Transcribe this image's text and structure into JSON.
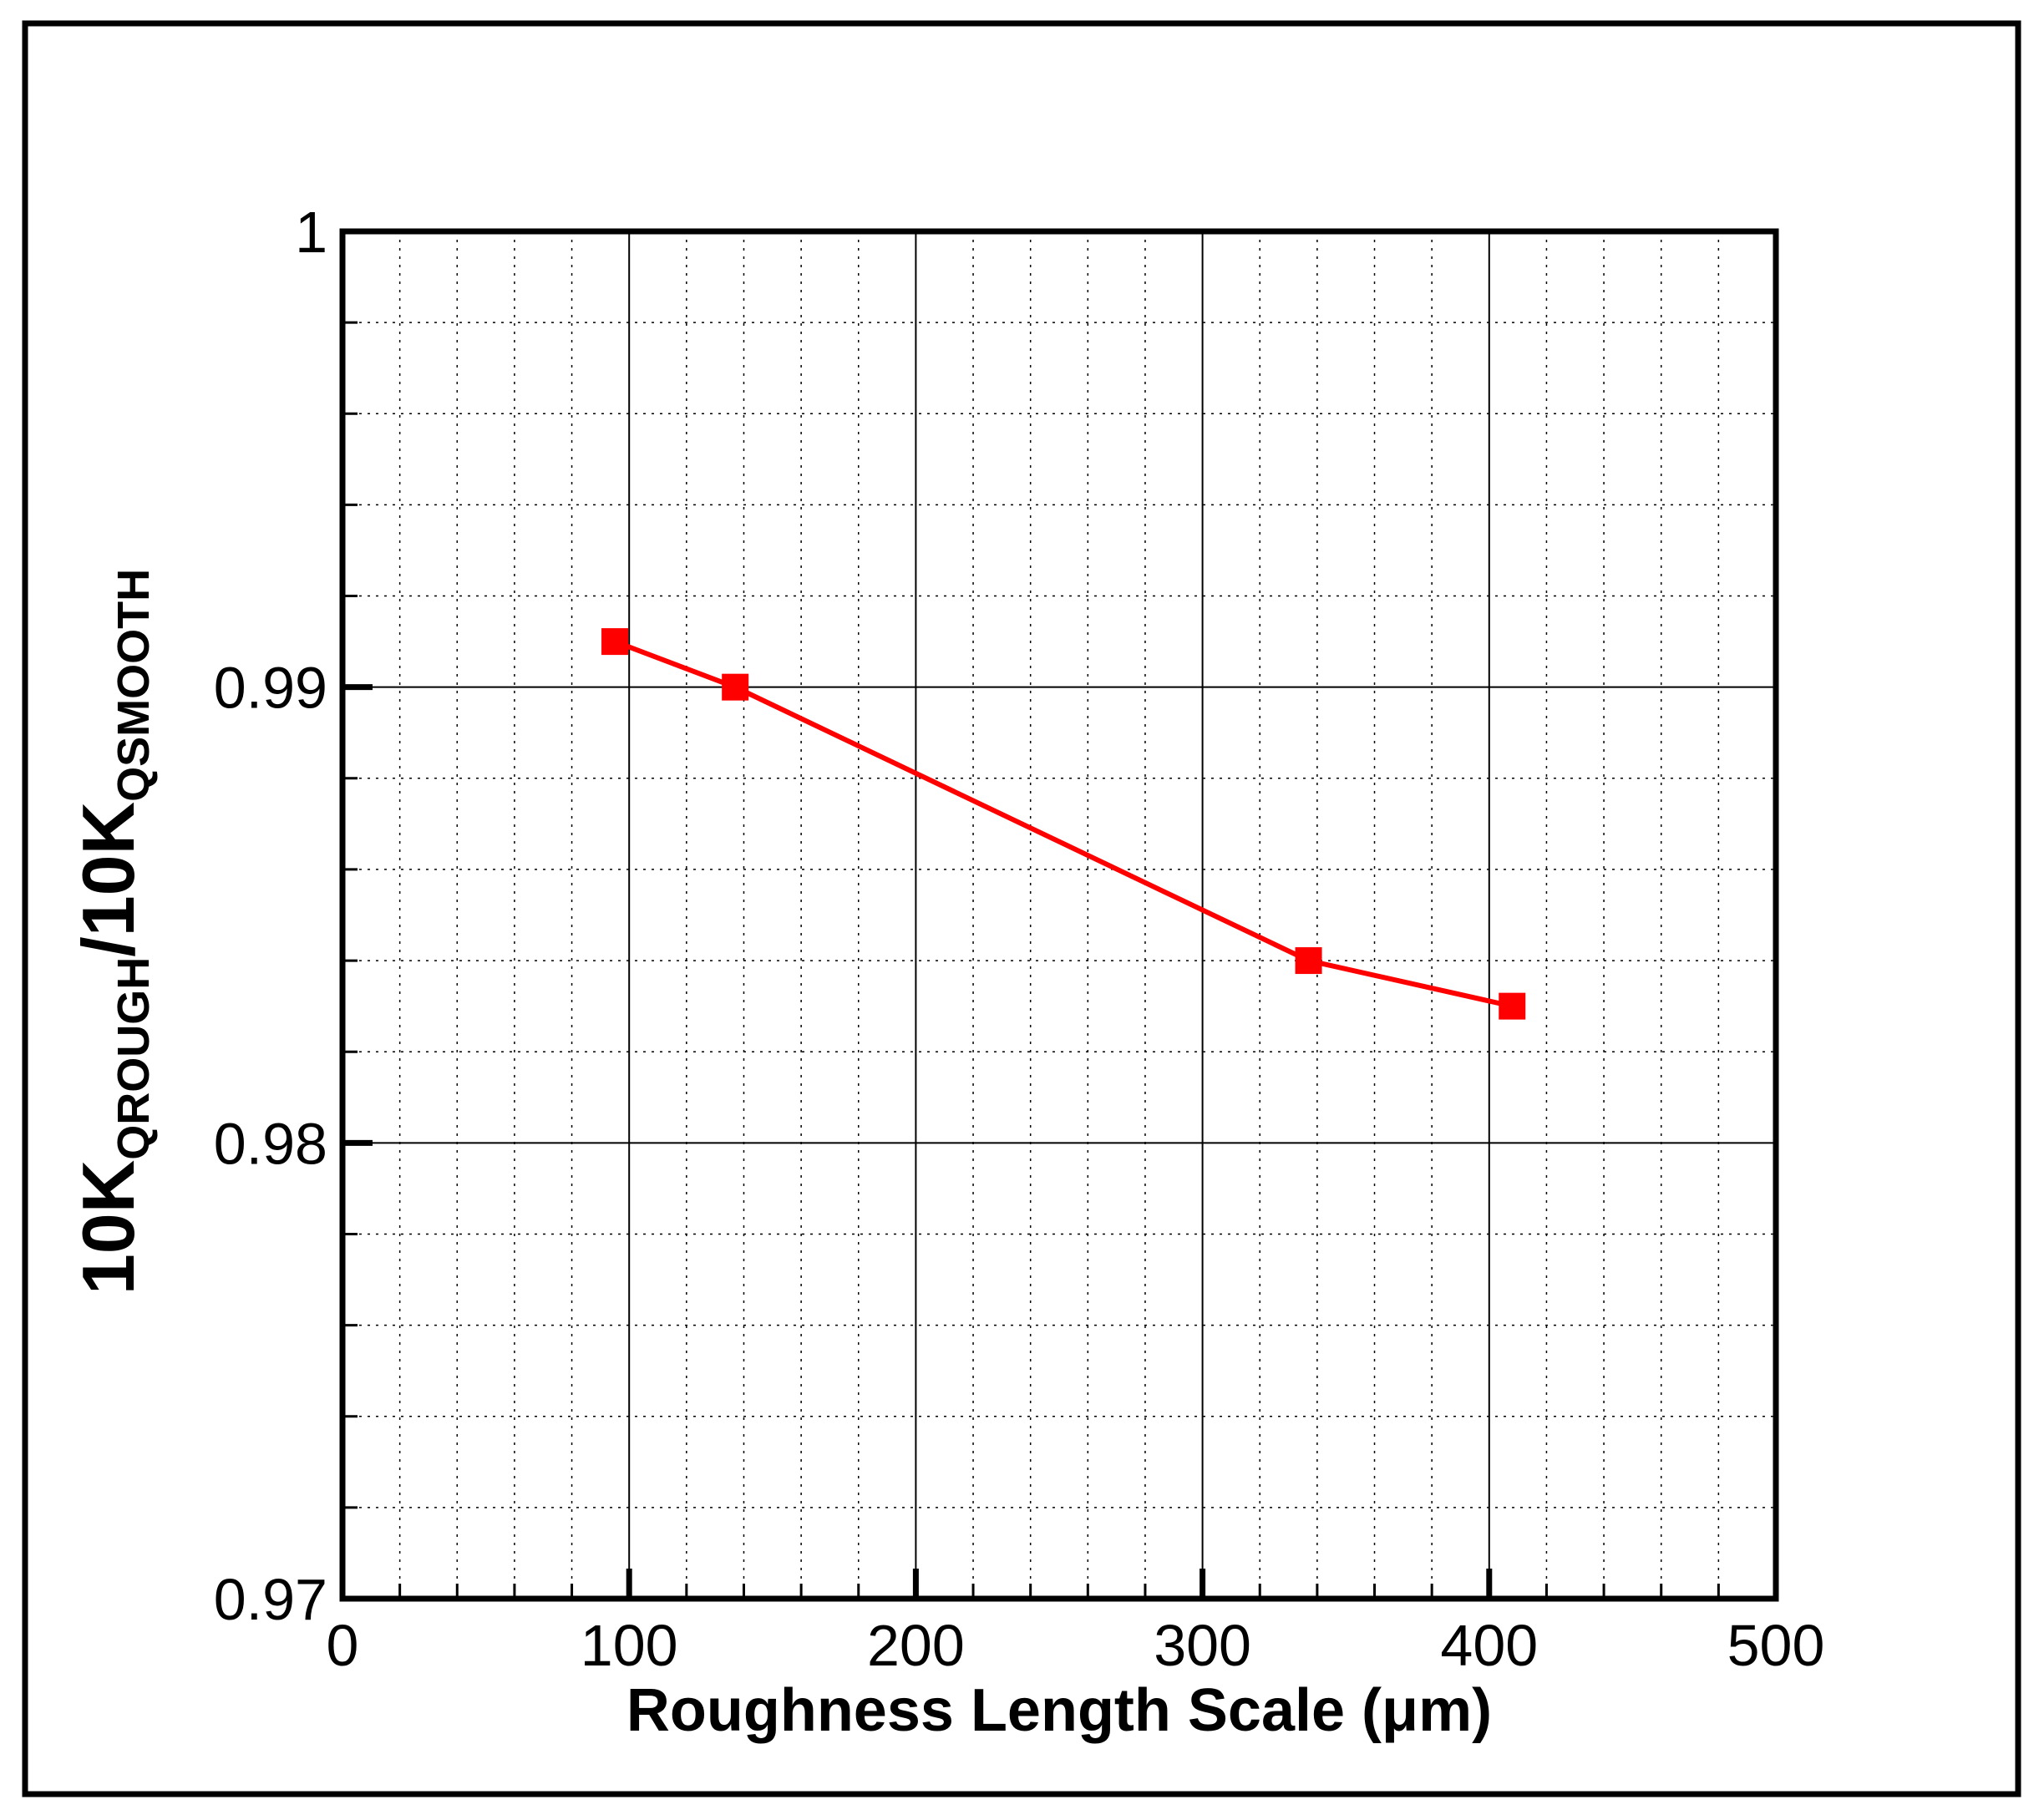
{
  "chart_data": {
    "type": "line",
    "title": "",
    "xlabel": "Roughness Length Scale (μm)",
    "ylabel": {
      "main1": "10K",
      "sub1": "QROUGH",
      "main2": "/10K",
      "sub2": "QSMOOTH"
    },
    "xlim": [
      0,
      500
    ],
    "ylim": [
      0.97,
      1.0
    ],
    "x_ticks": [
      0,
      100,
      200,
      300,
      400,
      500
    ],
    "x_tick_labels": [
      "0",
      "100",
      "200",
      "300",
      "400",
      "500"
    ],
    "y_ticks": [
      0.97,
      0.98,
      0.99,
      1.0
    ],
    "y_tick_labels": [
      "0.97",
      "0.98",
      "0.99",
      "1"
    ],
    "x_minor_step": 20,
    "y_minor_step": 0.002,
    "grid": true,
    "series": [
      {
        "x": [
          95,
          137,
          337,
          408
        ],
        "y": [
          0.991,
          0.99,
          0.984,
          0.983
        ],
        "color": "#ff0000",
        "marker": "square"
      }
    ]
  }
}
